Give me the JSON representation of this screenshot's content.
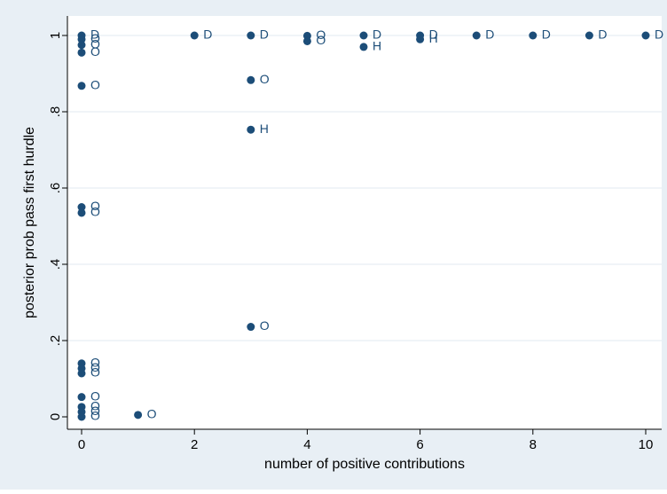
{
  "colors": {
    "outer_background": "#e8eff5",
    "plot_background": "#ffffff",
    "grid": "#e8eef4",
    "marker": "#1c4d78",
    "text": "#000000"
  },
  "chart_data": {
    "type": "scatter",
    "title": "",
    "xlabel": "number of positive contributions",
    "ylabel": "posterior prob pass first hurdle",
    "xlim": [
      0,
      10
    ],
    "ylim": [
      0,
      1
    ],
    "x_ticks": [
      0,
      2,
      4,
      6,
      8,
      10
    ],
    "x_tick_labels": [
      "0",
      "2",
      "4",
      "6",
      "8",
      "10"
    ],
    "y_ticks": [
      0,
      0.2,
      0.4,
      0.6,
      0.8,
      1
    ],
    "y_tick_labels": [
      "0",
      ".2",
      ".4",
      ".6",
      ".8",
      "1"
    ],
    "grid": "horizontal",
    "legend": "none",
    "marker": "filled-circle",
    "points": [
      {
        "x": 0,
        "y": 1.0,
        "label": "D"
      },
      {
        "x": 0,
        "y": 0.99,
        "label": "O"
      },
      {
        "x": 0,
        "y": 0.975,
        "label": "O"
      },
      {
        "x": 0,
        "y": 0.955,
        "label": "O"
      },
      {
        "x": 0,
        "y": 0.868,
        "label": "O"
      },
      {
        "x": 0,
        "y": 0.55,
        "label": "O"
      },
      {
        "x": 0,
        "y": 0.535,
        "label": "O"
      },
      {
        "x": 0,
        "y": 0.14,
        "label": "O"
      },
      {
        "x": 0,
        "y": 0.127,
        "label": "O"
      },
      {
        "x": 0,
        "y": 0.114,
        "label": "O"
      },
      {
        "x": 0,
        "y": 0.052,
        "label": "O"
      },
      {
        "x": 0,
        "y": 0.026,
        "label": "O"
      },
      {
        "x": 0,
        "y": 0.013,
        "label": "O"
      },
      {
        "x": 0,
        "y": 0.0,
        "label": "O"
      },
      {
        "x": 1,
        "y": 0.005,
        "label": "O"
      },
      {
        "x": 2,
        "y": 1.0,
        "label": "D"
      },
      {
        "x": 3,
        "y": 1.0,
        "label": "D"
      },
      {
        "x": 3,
        "y": 0.883,
        "label": "O"
      },
      {
        "x": 3,
        "y": 0.753,
        "label": "H"
      },
      {
        "x": 3,
        "y": 0.236,
        "label": "O"
      },
      {
        "x": 4,
        "y": 0.999,
        "label": "O"
      },
      {
        "x": 4,
        "y": 0.985,
        "label": "O"
      },
      {
        "x": 5,
        "y": 1.0,
        "label": "D"
      },
      {
        "x": 5,
        "y": 0.97,
        "label": "H"
      },
      {
        "x": 6,
        "y": 1.0,
        "label": "D"
      },
      {
        "x": 6,
        "y": 0.99,
        "label": "H"
      },
      {
        "x": 7,
        "y": 1.0,
        "label": "D"
      },
      {
        "x": 8,
        "y": 1.0,
        "label": "D"
      },
      {
        "x": 9,
        "y": 1.0,
        "label": "D"
      },
      {
        "x": 10,
        "y": 1.0,
        "label": "D"
      }
    ]
  }
}
